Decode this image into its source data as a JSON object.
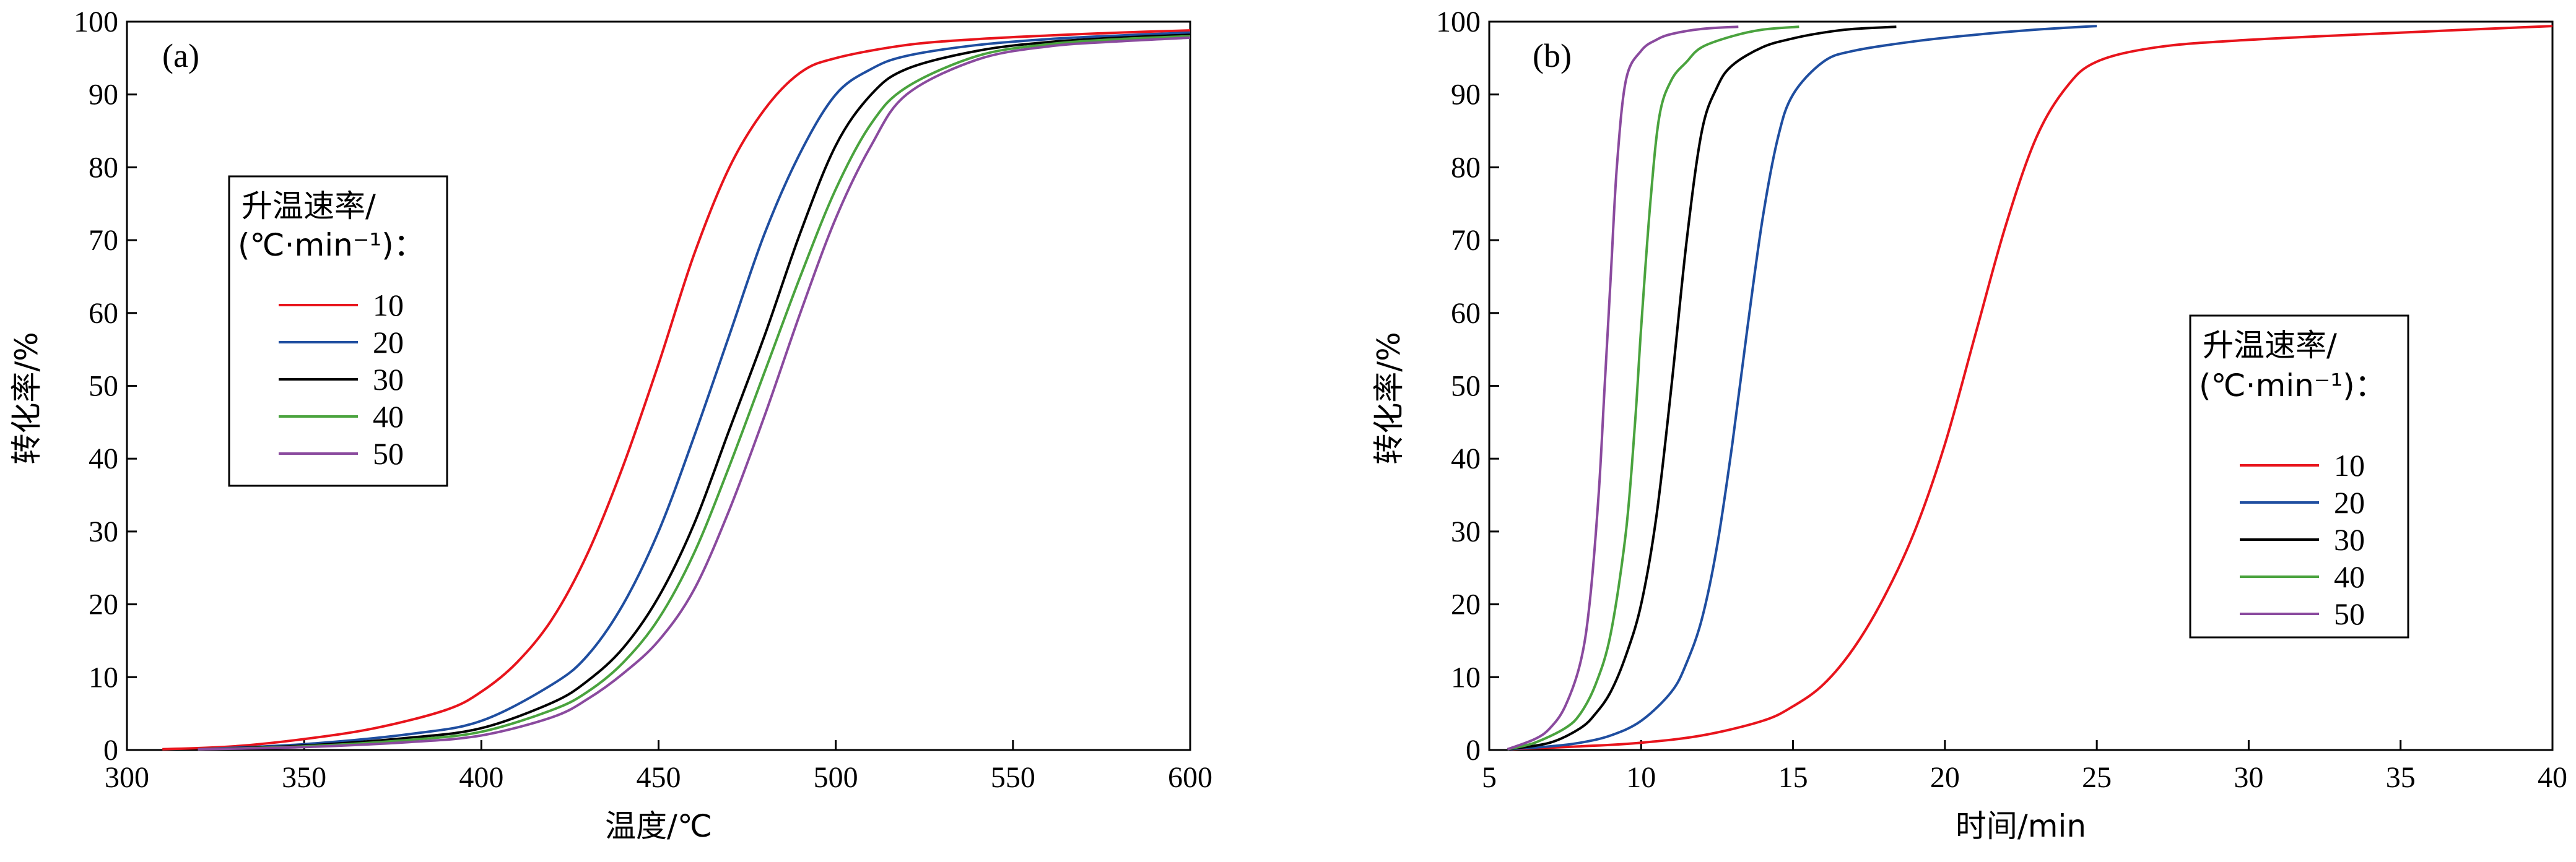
{
  "chart_data": [
    {
      "type": "line",
      "panel": "(a)",
      "xlabel": "温度/℃",
      "ylabel": "转化率/%",
      "xlim": [
        300,
        600
      ],
      "ylim": [
        0,
        100
      ],
      "xticks": [
        300,
        350,
        400,
        450,
        500,
        550,
        600
      ],
      "yticks": [
        0,
        10,
        20,
        30,
        40,
        50,
        60,
        70,
        80,
        90,
        100
      ],
      "legend": {
        "title_line1": "升温速率/",
        "title_line2": "(℃·min⁻¹)：",
        "placement": "middle-left"
      },
      "series": [
        {
          "name": "10",
          "color": "#e8141c",
          "x": [
            310,
            330,
            350,
            370,
            390,
            400,
            410,
            420,
            430,
            440,
            450,
            460,
            470,
            480,
            490,
            500,
            520,
            540,
            560,
            580,
            600
          ],
          "y": [
            0.1,
            0.5,
            1.5,
            3,
            5.5,
            8,
            12,
            18,
            27,
            39,
            53,
            68,
            80,
            88,
            93,
            95,
            96.8,
            97.6,
            98.1,
            98.5,
            98.8
          ]
        },
        {
          "name": "20",
          "color": "#1f4ea0",
          "x": [
            320,
            350,
            380,
            400,
            420,
            430,
            440,
            450,
            460,
            470,
            480,
            490,
            500,
            510,
            520,
            540,
            560,
            580,
            600
          ],
          "y": [
            0.1,
            0.8,
            2.2,
            4,
            9,
            13,
            20,
            30,
            43,
            57,
            71,
            82,
            90,
            93.5,
            95.3,
            96.8,
            97.6,
            98.1,
            98.5
          ]
        },
        {
          "name": "30",
          "color": "#000000",
          "x": [
            320,
            350,
            380,
            400,
            420,
            430,
            440,
            450,
            460,
            470,
            480,
            490,
            500,
            510,
            520,
            540,
            560,
            580,
            600
          ],
          "y": [
            0.1,
            0.6,
            1.7,
            3,
            6.5,
            9.5,
            14,
            21,
            31,
            44,
            57,
            71,
            83,
            90,
            93.5,
            96,
            97.2,
            97.8,
            98.2
          ]
        },
        {
          "name": "40",
          "color": "#4aa33e",
          "x": [
            320,
            350,
            380,
            400,
            420,
            430,
            440,
            450,
            460,
            470,
            480,
            490,
            500,
            510,
            520,
            540,
            560,
            580,
            600
          ],
          "y": [
            0.1,
            0.5,
            1.4,
            2.5,
            5.5,
            8,
            12,
            18,
            27,
            39,
            52,
            65,
            77,
            86,
            91,
            95.3,
            96.9,
            97.6,
            98
          ]
        },
        {
          "name": "50",
          "color": "#8a4a9e",
          "x": [
            320,
            350,
            380,
            400,
            420,
            430,
            440,
            450,
            460,
            470,
            480,
            490,
            500,
            510,
            520,
            540,
            560,
            580,
            600
          ],
          "y": [
            0.1,
            0.4,
            1.1,
            2,
            4.5,
            7,
            10.5,
            15,
            22,
            33,
            46,
            60,
            73,
            83,
            90,
            94.8,
            96.6,
            97.3,
            97.8
          ]
        }
      ]
    },
    {
      "type": "line",
      "panel": "(b)",
      "xlabel": "时间/min",
      "ylabel": "转化率/%",
      "xlim": [
        5,
        40
      ],
      "ylim": [
        0,
        100
      ],
      "xticks": [
        5,
        10,
        15,
        20,
        25,
        30,
        35,
        40
      ],
      "yticks": [
        0,
        10,
        20,
        30,
        40,
        50,
        60,
        70,
        80,
        90,
        100
      ],
      "legend": {
        "title_line1": "升温速率/",
        "title_line2": "(℃·min⁻¹)：",
        "placement": "middle-right"
      },
      "series": [
        {
          "name": "10",
          "color": "#e8141c",
          "x": [
            5.6,
            8,
            10,
            12,
            14,
            15,
            16,
            17,
            18,
            19,
            20,
            21,
            22,
            23,
            24,
            25,
            27,
            30,
            35,
            40
          ],
          "y": [
            0.1,
            0.5,
            1,
            2,
            4,
            6,
            9,
            14,
            21,
            30,
            42,
            57,
            72,
            84,
            91,
            94.5,
            96.5,
            97.5,
            98.5,
            99.4
          ]
        },
        {
          "name": "20",
          "color": "#1f4ea0",
          "x": [
            5.6,
            7,
            8,
            9,
            10,
            11,
            11.5,
            12,
            12.5,
            13,
            13.5,
            14,
            14.5,
            15,
            16,
            17,
            19,
            21,
            23,
            25
          ],
          "y": [
            0.1,
            0.5,
            1,
            2,
            4,
            8,
            12,
            18,
            28,
            42,
            58,
            73,
            84,
            90,
            94.5,
            96,
            97.3,
            98.2,
            98.9,
            99.4
          ]
        },
        {
          "name": "30",
          "color": "#000000",
          "x": [
            5.6,
            7,
            8,
            8.5,
            9,
            9.5,
            10,
            10.5,
            11,
            11.5,
            12,
            12.5,
            13,
            14,
            15,
            16,
            17,
            18.4
          ],
          "y": [
            0.1,
            1,
            3,
            5,
            8,
            13,
            20,
            32,
            50,
            70,
            85,
            91,
            94,
            96.5,
            97.7,
            98.5,
            99,
            99.3
          ]
        },
        {
          "name": "40",
          "color": "#4aa33e",
          "x": [
            5.6,
            6.5,
            7.5,
            8,
            8.5,
            9,
            9.5,
            9.8,
            10,
            10.3,
            10.6,
            11,
            11.5,
            12,
            13,
            14,
            15.2
          ],
          "y": [
            0.1,
            1,
            3,
            5,
            9,
            16,
            30,
            45,
            58,
            75,
            87,
            92,
            94.5,
            96.5,
            98,
            98.9,
            99.3
          ]
        },
        {
          "name": "50",
          "color": "#8a4a9e",
          "x": [
            5.6,
            6.5,
            7,
            7.5,
            8,
            8.3,
            8.6,
            8.8,
            9,
            9.2,
            9.5,
            10,
            10.5,
            11,
            12,
            13.2
          ],
          "y": [
            0.1,
            1.5,
            3,
            6,
            12,
            20,
            35,
            50,
            65,
            80,
            92,
            96,
            97.5,
            98.3,
            99,
            99.3
          ]
        }
      ]
    }
  ]
}
